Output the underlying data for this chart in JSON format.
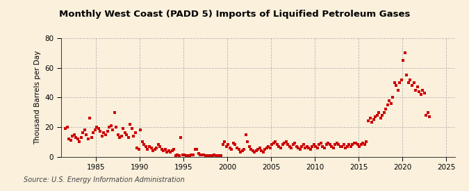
{
  "title": "Monthly West Coast (PADD 5) Imports of Liquified Petroleum Gases",
  "ylabel": "Thousand Barrels per Day",
  "source": "Source: U.S. Energy Information Administration",
  "background_color": "#FAF0DC",
  "marker_color": "#CC0000",
  "xlim": [
    1981,
    2026
  ],
  "ylim": [
    0,
    80
  ],
  "yticks": [
    0,
    20,
    40,
    60,
    80
  ],
  "xticks": [
    1985,
    1990,
    1995,
    2000,
    2005,
    2010,
    2015,
    2020,
    2025
  ],
  "data_points": [
    [
      1981.5,
      19
    ],
    [
      1981.7,
      20
    ],
    [
      1981.9,
      12
    ],
    [
      1982.1,
      11
    ],
    [
      1982.3,
      14
    ],
    [
      1982.5,
      15
    ],
    [
      1982.7,
      13
    ],
    [
      1982.9,
      12
    ],
    [
      1983.1,
      10
    ],
    [
      1983.3,
      13
    ],
    [
      1983.5,
      16
    ],
    [
      1983.7,
      18
    ],
    [
      1983.9,
      15
    ],
    [
      1984.1,
      12
    ],
    [
      1984.3,
      26
    ],
    [
      1984.5,
      13
    ],
    [
      1984.7,
      16
    ],
    [
      1984.9,
      18
    ],
    [
      1985.1,
      20
    ],
    [
      1985.3,
      19
    ],
    [
      1985.5,
      17
    ],
    [
      1985.7,
      14
    ],
    [
      1985.9,
      16
    ],
    [
      1986.1,
      15
    ],
    [
      1986.3,
      17
    ],
    [
      1986.5,
      20
    ],
    [
      1986.7,
      21
    ],
    [
      1986.9,
      18
    ],
    [
      1987.1,
      30
    ],
    [
      1987.3,
      20
    ],
    [
      1987.5,
      15
    ],
    [
      1987.7,
      13
    ],
    [
      1987.9,
      14
    ],
    [
      1988.1,
      19
    ],
    [
      1988.3,
      16
    ],
    [
      1988.5,
      15
    ],
    [
      1988.7,
      13
    ],
    [
      1988.9,
      22
    ],
    [
      1989.1,
      19
    ],
    [
      1989.3,
      14
    ],
    [
      1989.5,
      16
    ],
    [
      1989.7,
      6
    ],
    [
      1989.9,
      5
    ],
    [
      1990.1,
      18
    ],
    [
      1990.3,
      10
    ],
    [
      1990.5,
      8
    ],
    [
      1990.7,
      7
    ],
    [
      1990.9,
      5
    ],
    [
      1991.1,
      7
    ],
    [
      1991.3,
      6
    ],
    [
      1991.5,
      4
    ],
    [
      1991.7,
      5
    ],
    [
      1991.9,
      6
    ],
    [
      1992.1,
      8
    ],
    [
      1992.3,
      7
    ],
    [
      1992.5,
      5
    ],
    [
      1992.7,
      4
    ],
    [
      1992.9,
      5
    ],
    [
      1993.1,
      3
    ],
    [
      1993.3,
      4
    ],
    [
      1993.5,
      3
    ],
    [
      1993.7,
      4
    ],
    [
      1993.9,
      5
    ],
    [
      1994.1,
      0.5
    ],
    [
      1994.3,
      1
    ],
    [
      1994.5,
      0.5
    ],
    [
      1994.7,
      13
    ],
    [
      1994.9,
      1
    ],
    [
      1995.1,
      1
    ],
    [
      1995.3,
      0.5
    ],
    [
      1995.5,
      0.5
    ],
    [
      1995.7,
      0.5
    ],
    [
      1995.9,
      1
    ],
    [
      1996.1,
      1
    ],
    [
      1996.3,
      5
    ],
    [
      1996.5,
      5
    ],
    [
      1996.7,
      2
    ],
    [
      1996.9,
      1
    ],
    [
      1997.1,
      1
    ],
    [
      1997.3,
      1
    ],
    [
      1997.5,
      0.5
    ],
    [
      1997.7,
      0.5
    ],
    [
      1997.9,
      0.5
    ],
    [
      1998.1,
      0.5
    ],
    [
      1998.3,
      0.5
    ],
    [
      1998.5,
      1
    ],
    [
      1998.7,
      0.5
    ],
    [
      1998.9,
      0.5
    ],
    [
      1999.1,
      0.5
    ],
    [
      1999.3,
      0.5
    ],
    [
      1999.5,
      8
    ],
    [
      1999.7,
      10
    ],
    [
      1999.9,
      7
    ],
    [
      2000.1,
      8
    ],
    [
      2000.3,
      6
    ],
    [
      2000.5,
      5
    ],
    [
      2000.7,
      9
    ],
    [
      2000.9,
      8
    ],
    [
      2001.1,
      6
    ],
    [
      2001.3,
      5
    ],
    [
      2001.5,
      3
    ],
    [
      2001.7,
      4
    ],
    [
      2001.9,
      5
    ],
    [
      2002.1,
      15
    ],
    [
      2002.3,
      10
    ],
    [
      2002.5,
      7
    ],
    [
      2002.7,
      5
    ],
    [
      2002.9,
      4
    ],
    [
      2003.1,
      3
    ],
    [
      2003.3,
      4
    ],
    [
      2003.5,
      5
    ],
    [
      2003.7,
      6
    ],
    [
      2003.9,
      4
    ],
    [
      2004.1,
      3
    ],
    [
      2004.3,
      5
    ],
    [
      2004.5,
      6
    ],
    [
      2004.7,
      7
    ],
    [
      2004.9,
      6
    ],
    [
      2005.1,
      8
    ],
    [
      2005.3,
      9
    ],
    [
      2005.5,
      10
    ],
    [
      2005.7,
      8
    ],
    [
      2005.9,
      7
    ],
    [
      2006.1,
      6
    ],
    [
      2006.3,
      8
    ],
    [
      2006.5,
      9
    ],
    [
      2006.7,
      10
    ],
    [
      2006.9,
      8
    ],
    [
      2007.1,
      7
    ],
    [
      2007.3,
      6
    ],
    [
      2007.5,
      8
    ],
    [
      2007.7,
      9
    ],
    [
      2007.9,
      7
    ],
    [
      2008.1,
      6
    ],
    [
      2008.3,
      5
    ],
    [
      2008.5,
      7
    ],
    [
      2008.7,
      8
    ],
    [
      2008.9,
      6
    ],
    [
      2009.1,
      7
    ],
    [
      2009.3,
      6
    ],
    [
      2009.5,
      5
    ],
    [
      2009.7,
      7
    ],
    [
      2009.9,
      8
    ],
    [
      2010.1,
      7
    ],
    [
      2010.3,
      6
    ],
    [
      2010.5,
      8
    ],
    [
      2010.7,
      9
    ],
    [
      2010.9,
      7
    ],
    [
      2011.1,
      6
    ],
    [
      2011.3,
      8
    ],
    [
      2011.5,
      9
    ],
    [
      2011.7,
      8
    ],
    [
      2011.9,
      7
    ],
    [
      2012.1,
      6
    ],
    [
      2012.3,
      8
    ],
    [
      2012.5,
      9
    ],
    [
      2012.7,
      8
    ],
    [
      2012.9,
      7
    ],
    [
      2013.1,
      7
    ],
    [
      2013.3,
      8
    ],
    [
      2013.5,
      6
    ],
    [
      2013.7,
      7
    ],
    [
      2013.9,
      8
    ],
    [
      2014.1,
      7
    ],
    [
      2014.3,
      8
    ],
    [
      2014.5,
      9
    ],
    [
      2014.7,
      9
    ],
    [
      2014.9,
      8
    ],
    [
      2015.1,
      7
    ],
    [
      2015.3,
      8
    ],
    [
      2015.5,
      9
    ],
    [
      2015.7,
      8
    ],
    [
      2015.9,
      10
    ],
    [
      2016.1,
      24
    ],
    [
      2016.3,
      26
    ],
    [
      2016.5,
      23
    ],
    [
      2016.7,
      25
    ],
    [
      2016.9,
      27
    ],
    [
      2017.1,
      28
    ],
    [
      2017.3,
      30
    ],
    [
      2017.5,
      26
    ],
    [
      2017.7,
      28
    ],
    [
      2017.9,
      30
    ],
    [
      2018.1,
      32
    ],
    [
      2018.3,
      35
    ],
    [
      2018.5,
      38
    ],
    [
      2018.7,
      36
    ],
    [
      2018.9,
      40
    ],
    [
      2019.1,
      50
    ],
    [
      2019.3,
      48
    ],
    [
      2019.5,
      45
    ],
    [
      2019.7,
      50
    ],
    [
      2019.9,
      52
    ],
    [
      2020.1,
      65
    ],
    [
      2020.3,
      70
    ],
    [
      2020.5,
      55
    ],
    [
      2020.7,
      50
    ],
    [
      2020.9,
      52
    ],
    [
      2021.1,
      48
    ],
    [
      2021.3,
      50
    ],
    [
      2021.5,
      45
    ],
    [
      2021.7,
      47
    ],
    [
      2021.9,
      44
    ],
    [
      2022.1,
      42
    ],
    [
      2022.3,
      45
    ],
    [
      2022.5,
      43
    ],
    [
      2022.7,
      28
    ],
    [
      2022.9,
      30
    ],
    [
      2023.1,
      27
    ]
  ]
}
